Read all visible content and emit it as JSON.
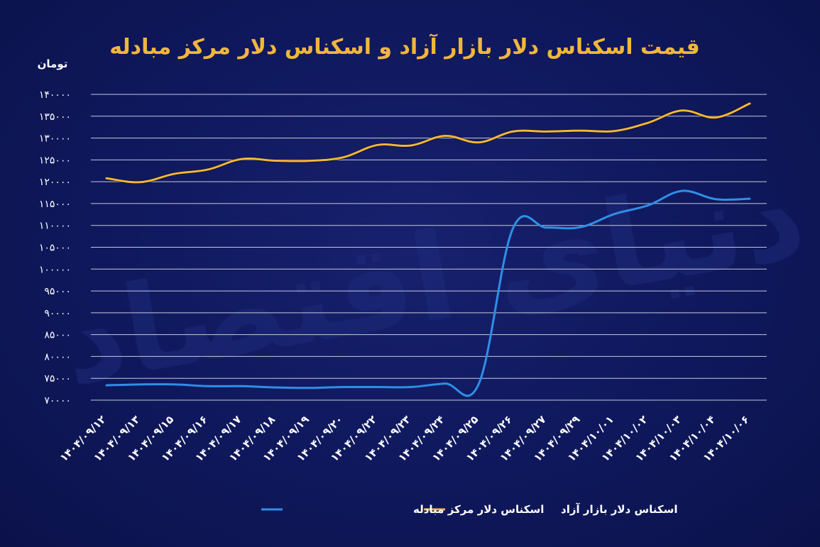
{
  "chart_data": {
    "type": "line",
    "title": "قیمت اسکناس دلار بازار آزاد و اسکناس دلار مرکز مبادله",
    "ylabel": "تومان",
    "ylim": [
      70000,
      140000
    ],
    "yticks": [
      70000,
      75000,
      80000,
      85000,
      90000,
      95000,
      100000,
      105000,
      110000,
      115000,
      120000,
      125000,
      130000,
      135000,
      140000
    ],
    "ytick_labels": [
      "۷۰۰۰۰",
      "۷۵۰۰۰",
      "۸۰۰۰۰",
      "۸۵۰۰۰",
      "۹۰۰۰۰",
      "۹۵۰۰۰",
      "۱۰۰۰۰۰",
      "۱۰۵۰۰۰",
      "۱۱۰۰۰۰",
      "۱۱۵۰۰۰",
      "۱۲۰۰۰۰",
      "۱۲۵۰۰۰",
      "۱۳۰۰۰۰",
      "۱۳۵۰۰۰",
      "۱۴۰۰۰۰"
    ],
    "categories": [
      "۱۴۰۴/۰۹/۱۲",
      "۱۴۰۴/۰۹/۱۳",
      "۱۴۰۴/۰۹/۱۵",
      "۱۴۰۴/۰۹/۱۶",
      "۱۴۰۴/۰۹/۱۷",
      "۱۴۰۴/۰۹/۱۸",
      "۱۴۰۴/۰۹/۱۹",
      "۱۴۰۴/۰۹/۲۰",
      "۱۴۰۴/۰۹/۲۲",
      "۱۴۰۴/۰۹/۲۳",
      "۱۴۰۴/۰۹/۲۴",
      "۱۴۰۴/۰۹/۲۵",
      "۱۴۰۴/۰۹/۲۶",
      "۱۴۰۴/۰۹/۲۷",
      "۱۴۰۴/۰۹/۲۹",
      "۱۴۰۴/۱۰/۰۱",
      "۱۴۰۴/۱۰/۰۲",
      "۱۴۰۴/۱۰/۰۳",
      "۱۴۰۴/۱۰/۰۴",
      "۱۴۰۴/۱۰/۰۶"
    ],
    "series": [
      {
        "name": "اسکناس دلار بازار آزاد",
        "color": "#f2b63c",
        "values": [
          120800,
          119900,
          121800,
          122800,
          125200,
          124800,
          124800,
          125600,
          128400,
          128300,
          130500,
          129000,
          131500,
          131500,
          131700,
          131600,
          133500,
          136300,
          134700,
          137900
        ]
      },
      {
        "name": "اسکناس دلار مرکز مبادله",
        "color": "#2e8fe6",
        "values": [
          73400,
          73600,
          73600,
          73200,
          73200,
          72900,
          72800,
          73000,
          73000,
          73000,
          73800,
          73800,
          109200,
          109500,
          109600,
          112600,
          114600,
          117900,
          116000,
          116100
        ]
      }
    ],
    "legend_position": "bottom",
    "grid": true
  },
  "watermark_text": "دنیای اقتصاد"
}
